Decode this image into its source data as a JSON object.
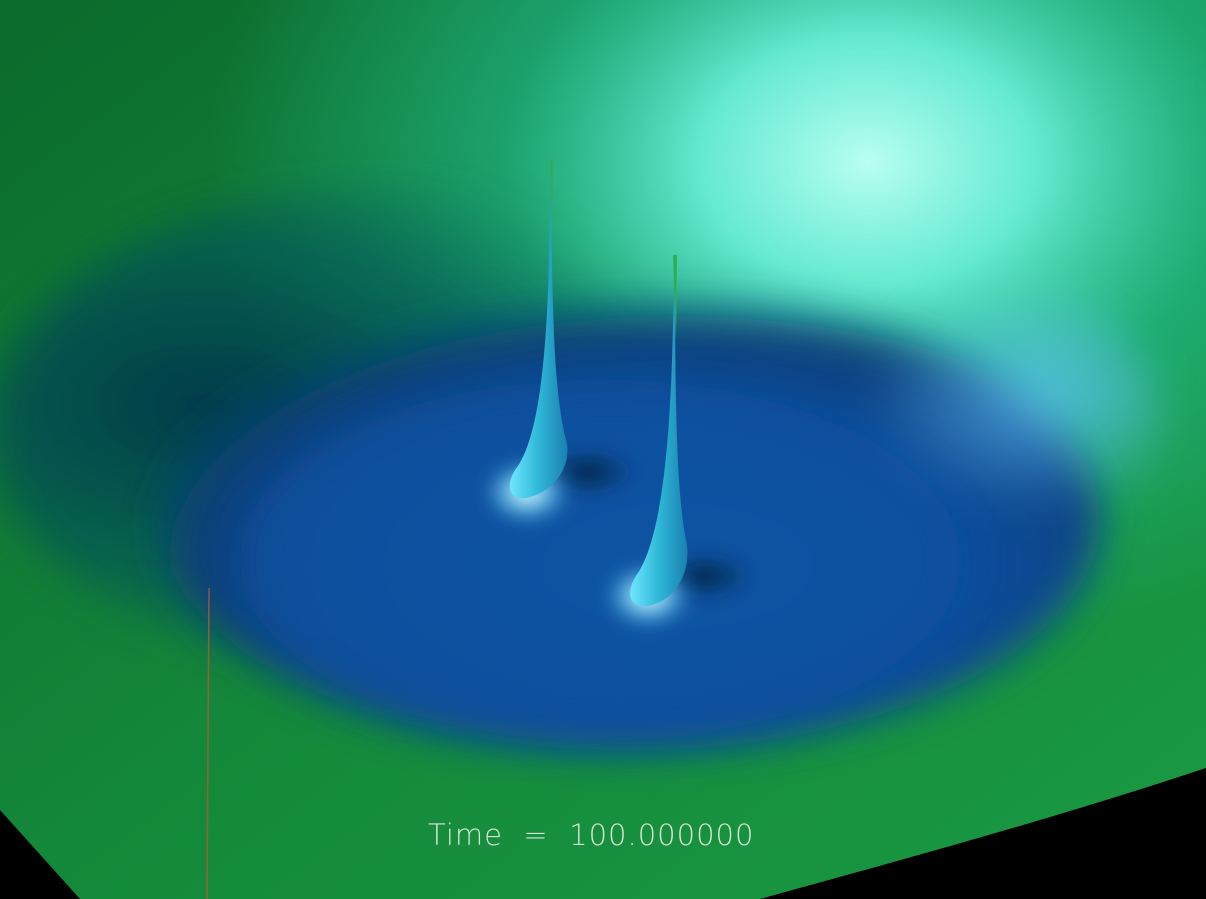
{
  "overlay": {
    "time_label": "Time  =  100.000000"
  },
  "colors": {
    "plane_green": "#18913f",
    "highlight_cyan": "#a8fff0",
    "well_blue": "#0a4fa0",
    "well_shadow": "#062f52",
    "background": "#000000",
    "axis_line": "#b8573c"
  },
  "scene": {
    "subject": "3D surface plot",
    "features": [
      "spike",
      "spike",
      "axis-line"
    ]
  }
}
